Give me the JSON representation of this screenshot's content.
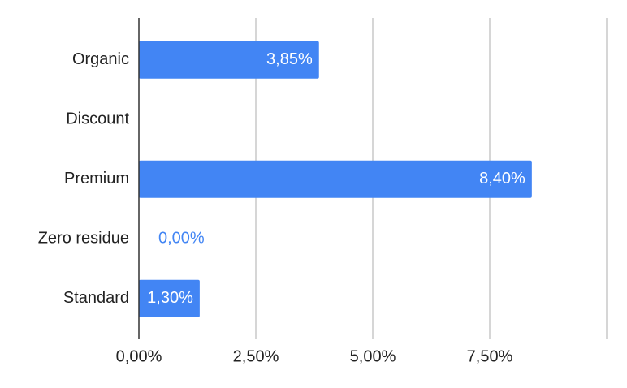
{
  "chart_data": {
    "type": "hbar",
    "categories": [
      "Organic",
      "Discount",
      "Premium",
      "Zero residue",
      "Standard"
    ],
    "values": [
      3.85,
      null,
      8.4,
      0.0,
      1.3
    ],
    "value_labels": [
      "3,85%",
      null,
      "8,40%",
      "0,00%",
      "1,30%"
    ],
    "color": "#4285f4",
    "xlim": [
      0,
      10
    ],
    "xticks": [
      {
        "value": 0,
        "label": "0,00%"
      },
      {
        "value": 2.5,
        "label": "2,50%"
      },
      {
        "value": 5,
        "label": "5,00%"
      },
      {
        "value": 7.5,
        "label": "7,50%"
      }
    ],
    "grid": true
  }
}
